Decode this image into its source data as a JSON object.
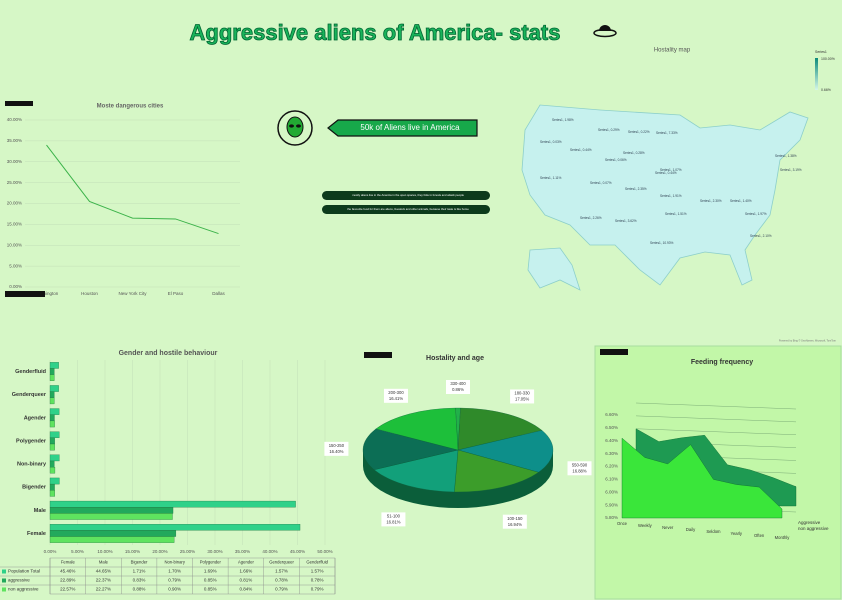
{
  "header": {
    "title": "Aggressive aliens of America- stats"
  },
  "info": {
    "headline": "50k of Aliens live in America",
    "notes": [
      "mostly aliens live in the America in the open spaces, they hide in forests and attack people",
      "the favourite food for them are aliens, livestock and other animals, because their taste is like home"
    ]
  },
  "map": {
    "title": "Hostality map",
    "legend_title": "Series1",
    "legend_max": "100.00%",
    "legend_min": "0.66%",
    "labels": [
      "Series1, 1.98%",
      "Series1, 0.29%",
      "Series1, 0.22%",
      "Series1, 7.33%",
      "Series1, 0.03%",
      "Series1, 0.44%",
      "Series1, 0.28%",
      "Series1, 0.06%",
      "Series1, 1.07%",
      "Series1, 1.38%",
      "Series1, 3.19%",
      "Series1, 1.11%",
      "Series1, 0.07%",
      "Series1, 2.35%",
      "Series1, 0.44%",
      "Series1, 1.91%",
      "Series1, 2.30%",
      "Series1, 1.40%",
      "Series1, 2.26%",
      "Series1, 3.62%",
      "Series1, 1.51%",
      "Series1, 10.93%",
      "Series1, 1.97%",
      "Series1, 2.10%"
    ],
    "credit": "Powered by Bing © GeoNames, Microsoft, TomTom"
  },
  "chart_data": [
    {
      "type": "line",
      "title": "Moste dangerous cities",
      "categories": [
        "Washington",
        "Houston",
        "New York City",
        "El Paso",
        "Dallas"
      ],
      "values": [
        34,
        20.5,
        16.5,
        16.3,
        12.8
      ],
      "color": "#3cb34a",
      "ylim": [
        0,
        40
      ],
      "yticks": [
        {
          "value": 0,
          "label": "0.00%"
        },
        {
          "value": 5,
          "label": "5.00%"
        },
        {
          "value": 10,
          "label": "10.00%"
        },
        {
          "value": 15,
          "label": "15.00%"
        },
        {
          "value": 20,
          "label": "20.00%"
        },
        {
          "value": 25,
          "label": "25.00%"
        },
        {
          "value": 30,
          "label": "30.00%"
        },
        {
          "value": 35,
          "label": "35.00%"
        },
        {
          "value": 40,
          "label": "40.00%"
        }
      ],
      "grid": true
    },
    {
      "type": "hbar",
      "title": "Gender and hostile behaviour",
      "categories": [
        "Female",
        "Male",
        "Bigender",
        "Non-binary",
        "Polygender",
        "Agender",
        "Genderqueer",
        "Genderfluid"
      ],
      "series": [
        {
          "name": "Population Total",
          "color": "#2fd189",
          "values": [
            45.46,
            44.65,
            1.71,
            1.7,
            1.69,
            1.66,
            1.57,
            1.57
          ],
          "value_labels": [
            "45.46%",
            "44.65%",
            "1.71%",
            "1.70%",
            "1.69%",
            "1.66%",
            "1.57%",
            "1.57%"
          ]
        },
        {
          "name": "aggressive",
          "color": "#22a95c",
          "values": [
            22.89,
            22.37,
            0.83,
            0.79,
            0.85,
            0.81,
            0.78,
            0.78
          ],
          "value_labels": [
            "22.89%",
            "22.37%",
            "0.83%",
            "0.79%",
            "0.85%",
            "0.81%",
            "0.78%",
            "0.78%"
          ]
        },
        {
          "name": "non aggressive",
          "color": "#5fe35f",
          "values": [
            22.57,
            22.27,
            0.88,
            0.9,
            0.85,
            0.84,
            0.79,
            0.79
          ],
          "value_labels": [
            "22.57%",
            "22.27%",
            "0.88%",
            "0.90%",
            "0.85%",
            "0.84%",
            "0.79%",
            "0.79%"
          ]
        }
      ],
      "xlim": [
        0,
        50
      ],
      "xticks": [
        {
          "value": 0,
          "label": "0.00%"
        },
        {
          "value": 5,
          "label": "5.00%"
        },
        {
          "value": 10,
          "label": "10.00%"
        },
        {
          "value": 15,
          "label": "15.00%"
        },
        {
          "value": 20,
          "label": "20.00%"
        },
        {
          "value": 25,
          "label": "25.00%"
        },
        {
          "value": 30,
          "label": "30.00%"
        },
        {
          "value": 35,
          "label": "35.00%"
        },
        {
          "value": 40,
          "label": "40.00%"
        },
        {
          "value": 45,
          "label": "45.00%"
        },
        {
          "value": 50,
          "label": "50.00%"
        }
      ],
      "grid": true
    },
    {
      "type": "pie",
      "title": "Hostality and age",
      "categories": [
        "330-400",
        "180-330",
        "550-590",
        "100-150",
        "51-100",
        "150-250",
        "200-300"
      ],
      "values": [
        0.86,
        17.05,
        16.88,
        16.94,
        16.81,
        16.4,
        16.41
      ],
      "value_labels": [
        "0.86%",
        "17.05%",
        "16.88%",
        "16.94%",
        "16.81%",
        "16.40%",
        "16.41%"
      ],
      "colors": [
        "#22b04a",
        "#2f8a2a",
        "#0d8f8a",
        "#3c9d2a",
        "#12a07a",
        "#0c6e55",
        "#1dbf3a"
      ]
    },
    {
      "type": "area3d",
      "title": "Feeding frequency",
      "categories": [
        "Once",
        "Weekly",
        "Never",
        "Daily",
        "Seldom",
        "Yearly",
        "Often",
        "Monthly"
      ],
      "series": [
        {
          "name": "Aggressive",
          "color": "#1e9a52",
          "values": [
            6.4,
            6.3,
            6.33,
            6.35,
            6.12,
            6.08,
            6.02,
            5.95
          ]
        },
        {
          "name": "non aggressive",
          "color": "#3ae63a",
          "values": [
            6.42,
            6.27,
            6.22,
            6.37,
            6.1,
            6.06,
            6.04,
            5.87
          ]
        }
      ],
      "ylim": [
        5.8,
        6.6
      ],
      "yticks": [
        {
          "value": 5.8,
          "label": "5.80%"
        },
        {
          "value": 5.9,
          "label": "5.90%"
        },
        {
          "value": 6.0,
          "label": "6.00%"
        },
        {
          "value": 6.1,
          "label": "6.10%"
        },
        {
          "value": 6.2,
          "label": "6.20%"
        },
        {
          "value": 6.3,
          "label": "6.30%"
        },
        {
          "value": 6.4,
          "label": "6.40%"
        },
        {
          "value": 6.5,
          "label": "6.50%"
        },
        {
          "value": 6.6,
          "label": "6.60%"
        }
      ],
      "grid": true
    }
  ]
}
